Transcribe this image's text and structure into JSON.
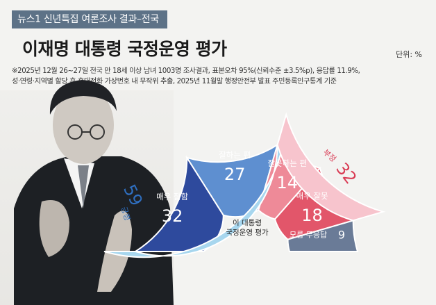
{
  "header": {
    "tag": "뉴스1 신년특집 여론조사 결과–전국",
    "title": "이재명 대통령 국정운영 평가",
    "unit": "단위: %",
    "note_line1": "※2025년 12월 26~27일 전국 만 18세 이상 남녀 1003명 조사결과, 표본오차 95%(신뢰수준 ±3.5%p), 응답률  11.9%,",
    "note_line2": "성·연령·지역별 할당 후 휴대전화 가상번호 내 무작위 추출,  2025년 11월말 행정안전부 발표 주민등록인구통계 기준"
  },
  "center_label": {
    "line1": "이 대통령",
    "line2": "국정운영 평가"
  },
  "colors": {
    "positive_outer": "#a7d6ee",
    "positive_strong": "#2e4a9d",
    "positive_weak": "#5e8fd0",
    "negative_outer": "#f7c4cd",
    "negative_strong": "#e2566a",
    "negative_weak": "#ee8a98",
    "dontknow": "#6a7b97",
    "positive_text": "#2f6fc0",
    "negative_text": "#d93b54"
  },
  "chart_data": {
    "type": "pie",
    "title": "이 대통령 국정운영 평가",
    "unit": "%",
    "outer_ring": [
      {
        "label": "긍정",
        "value": 59
      },
      {
        "label": "부정",
        "value": 32
      }
    ],
    "inner_ring": [
      {
        "label": "매우 잘함",
        "value": 32,
        "group": "긍정"
      },
      {
        "label": "잘하는 편",
        "value": 27,
        "group": "긍정"
      },
      {
        "label": "잘못하는 편",
        "value": 14,
        "group": "부정"
      },
      {
        "label": "매우 잘못",
        "value": 18,
        "group": "부정"
      },
      {
        "label": "모름·무응답",
        "value": 9,
        "group": ""
      }
    ]
  }
}
